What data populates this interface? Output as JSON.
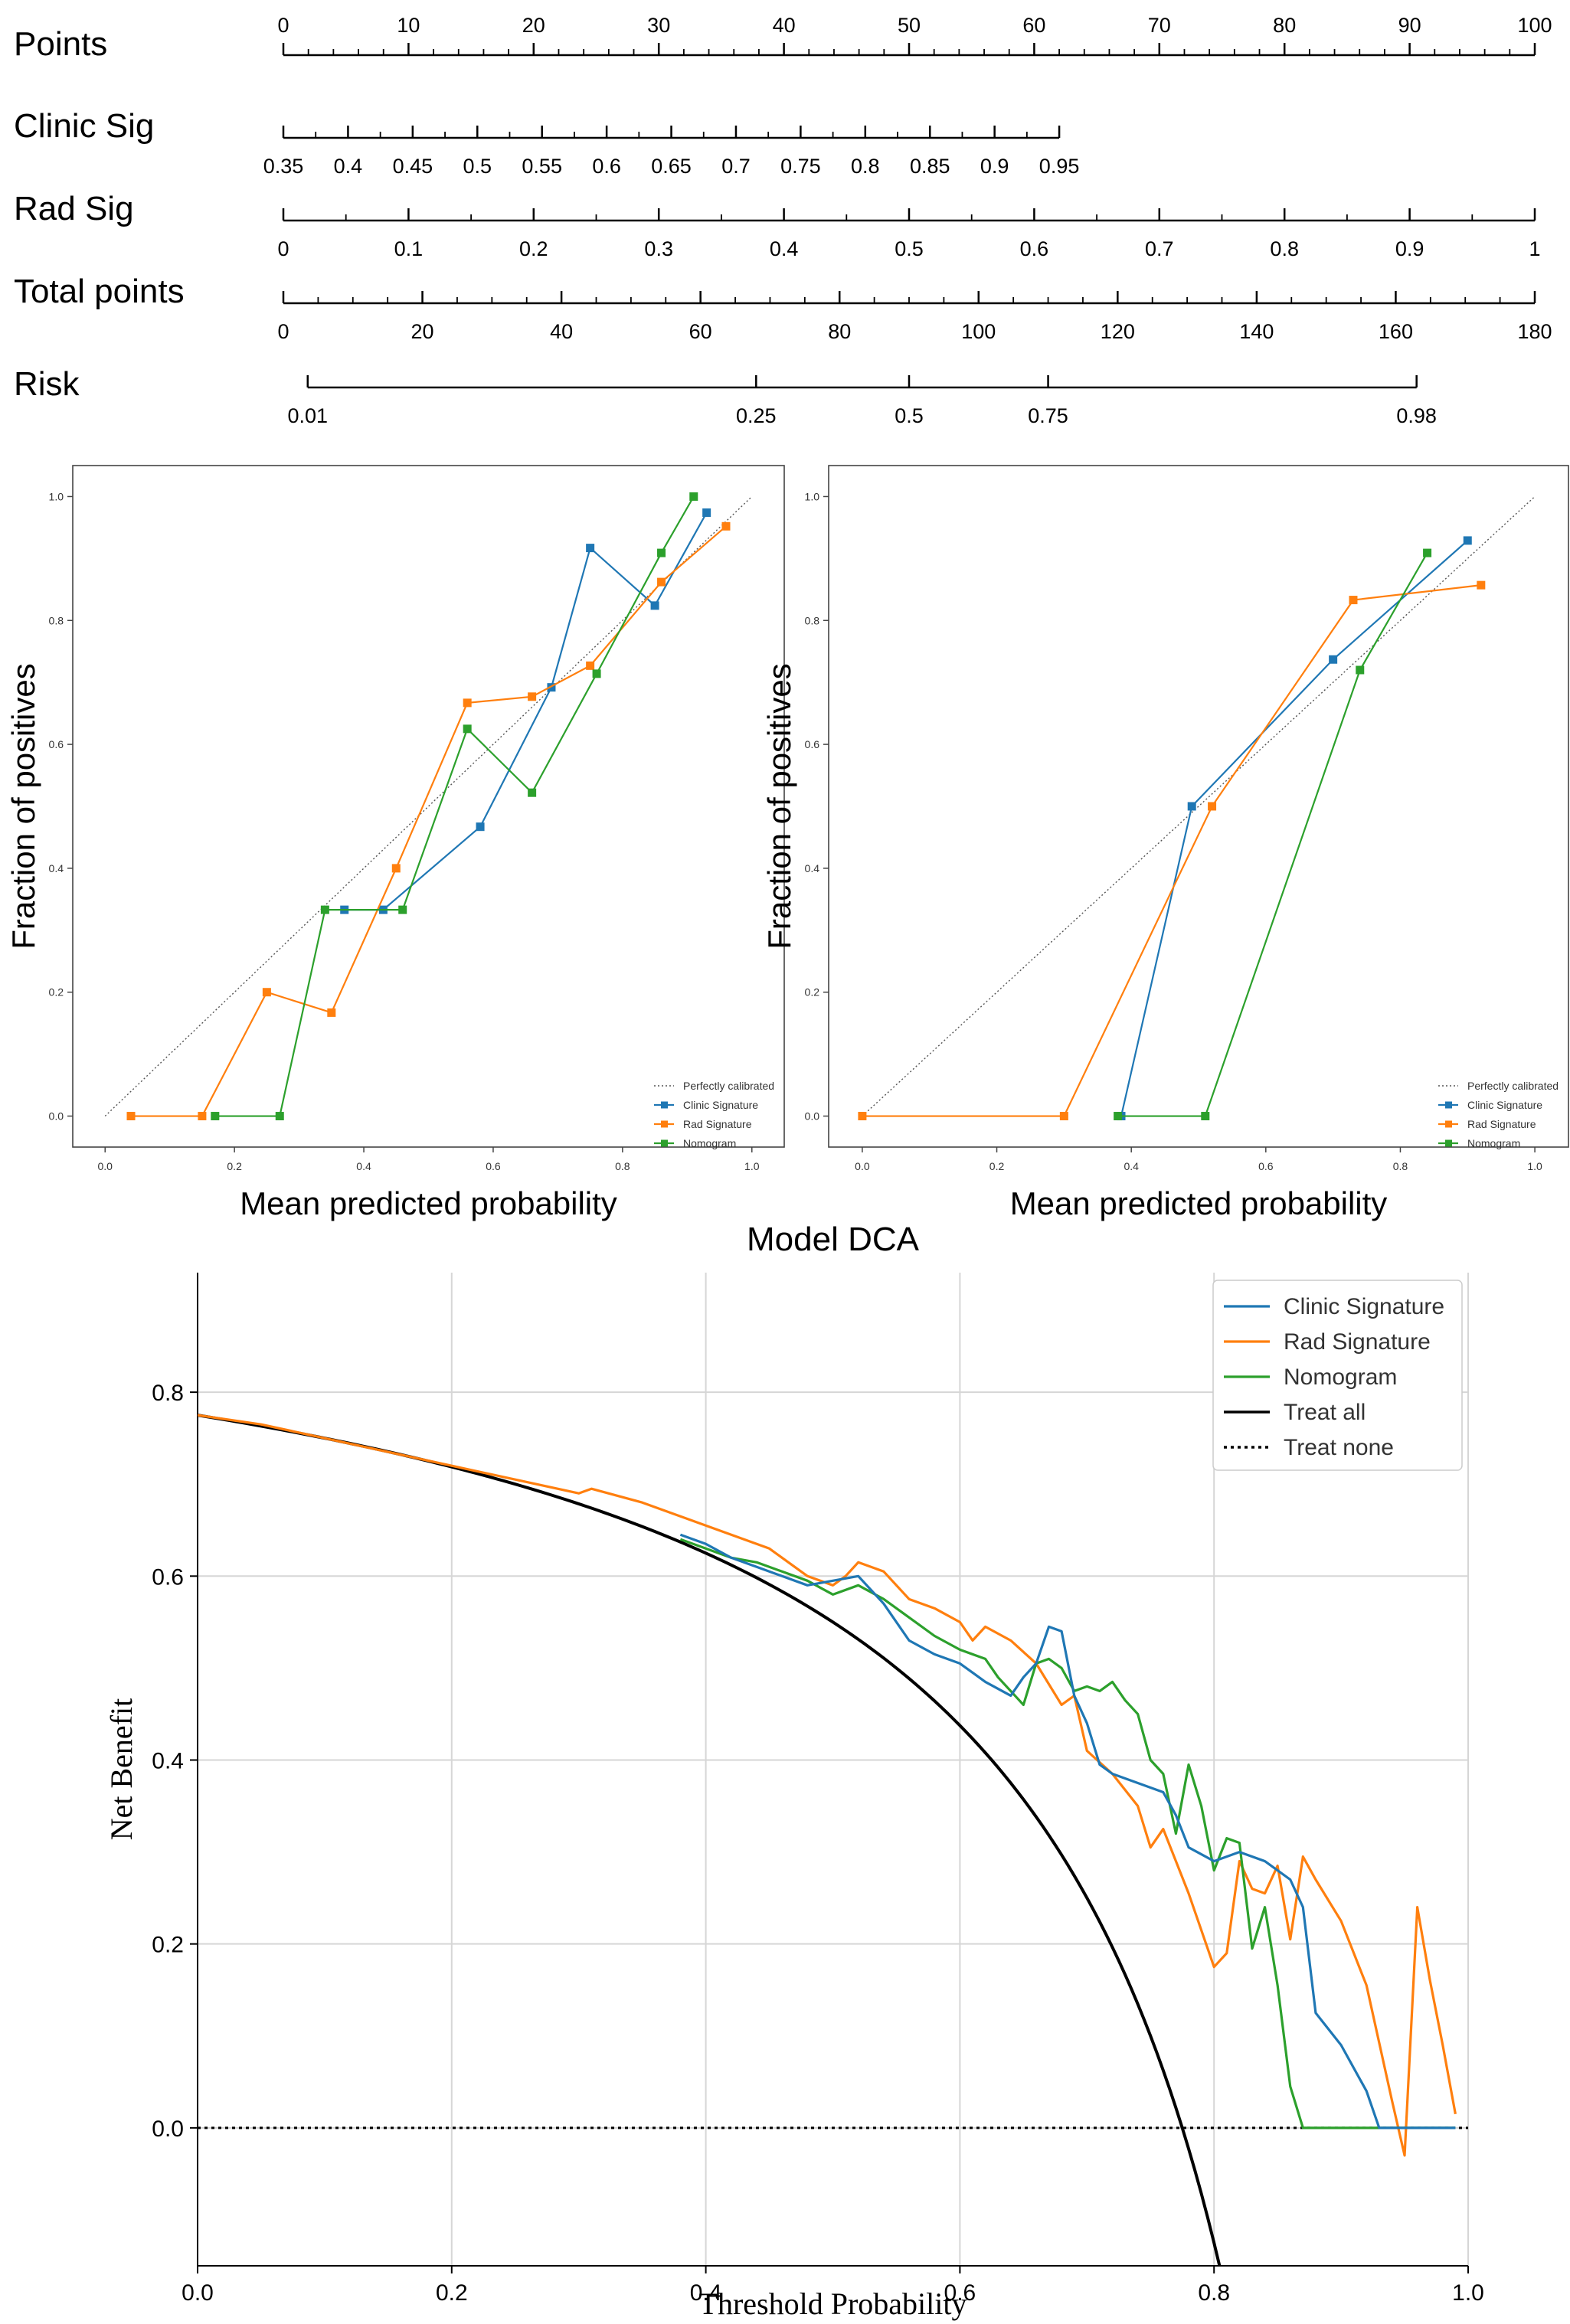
{
  "colors": {
    "clinic": "#1f77b4",
    "rad": "#ff7f0e",
    "nomogram": "#2ca02c",
    "treat_all": "#000000",
    "axis": "#000000",
    "grid": "#d6d6d6"
  },
  "chart_data": [
    {
      "type": "nomogram",
      "rows": [
        {
          "label": "Points",
          "ticks": [
            "0",
            "10",
            "20",
            "30",
            "40",
            "50",
            "60",
            "70",
            "80",
            "90",
            "100"
          ],
          "tick_values": [
            0,
            10,
            20,
            30,
            40,
            50,
            60,
            70,
            80,
            90,
            100
          ],
          "range": [
            0,
            100
          ],
          "axis_length_points": 100
        },
        {
          "label": "Clinic Sig",
          "ticks": [
            "0.35",
            "0.4",
            "0.45",
            "0.5",
            "0.55",
            "0.6",
            "0.65",
            "0.7",
            "0.75",
            "0.8",
            "0.85",
            "0.9",
            "0.95"
          ],
          "tick_values": [
            0.35,
            0.4,
            0.45,
            0.5,
            0.55,
            0.6,
            0.65,
            0.7,
            0.75,
            0.8,
            0.85,
            0.9,
            0.95
          ],
          "range": [
            0.35,
            0.95
          ],
          "points_range": [
            0,
            62
          ]
        },
        {
          "label": "Rad Sig",
          "ticks": [
            "0",
            "0.1",
            "0.2",
            "0.3",
            "0.4",
            "0.5",
            "0.6",
            "0.7",
            "0.8",
            "0.9",
            "1"
          ],
          "tick_values": [
            0,
            0.1,
            0.2,
            0.3,
            0.4,
            0.5,
            0.6,
            0.7,
            0.8,
            0.9,
            1
          ],
          "range": [
            0,
            1
          ],
          "points_range": [
            0,
            100
          ]
        },
        {
          "label": "Total points",
          "ticks": [
            "0",
            "20",
            "40",
            "60",
            "80",
            "100",
            "120",
            "140",
            "160",
            "180"
          ],
          "tick_values": [
            0,
            20,
            40,
            60,
            80,
            100,
            120,
            140,
            160,
            180
          ],
          "range": [
            0,
            180
          ]
        },
        {
          "label": "Risk",
          "ticks": [
            "0.01",
            "0.25",
            "0.5",
            "0.75",
            "0.98"
          ],
          "tick_values": [
            0.01,
            0.25,
            0.5,
            0.75,
            0.98
          ],
          "total_points_at_ticks": [
            3.5,
            68,
            90,
            110,
            163
          ],
          "range": [
            0.01,
            0.98
          ]
        }
      ]
    },
    {
      "type": "line",
      "title": "",
      "xlabel": "Mean predicted probability",
      "ylabel": "Fraction of positives",
      "xlim": [
        -0.05,
        1.05
      ],
      "ylim": [
        -0.05,
        1.05
      ],
      "xticks": [
        "0.0",
        "0.2",
        "0.4",
        "0.6",
        "0.8",
        "1.0"
      ],
      "yticks": [
        "0.0",
        "0.2",
        "0.4",
        "0.6",
        "0.8",
        "1.0"
      ],
      "legend_position": "bottom-right",
      "legend": [
        "Perfectly calibrated",
        "Clinic Signature",
        "Rad Signature",
        "Nomogram"
      ],
      "series": [
        {
          "name": "Perfectly calibrated",
          "style": "dotted",
          "x": [
            0,
            1
          ],
          "y": [
            0,
            1
          ]
        },
        {
          "name": "Clinic Signature",
          "x": [
            0.37,
            0.43,
            0.58,
            0.69,
            0.75,
            0.85,
            0.93
          ],
          "y": [
            0.333,
            0.333,
            0.467,
            0.692,
            0.917,
            0.824,
            0.974
          ]
        },
        {
          "name": "Rad Signature",
          "x": [
            0.04,
            0.15,
            0.25,
            0.35,
            0.45,
            0.56,
            0.66,
            0.75,
            0.86,
            0.96
          ],
          "y": [
            0.0,
            0.0,
            0.2,
            0.167,
            0.4,
            0.667,
            0.677,
            0.727,
            0.862,
            0.952
          ]
        },
        {
          "name": "Nomogram",
          "x": [
            0.17,
            0.27,
            0.34,
            0.46,
            0.56,
            0.66,
            0.76,
            0.86,
            0.91
          ],
          "y": [
            0.0,
            0.0,
            0.333,
            0.333,
            0.625,
            0.522,
            0.714,
            0.909,
            1.0
          ]
        }
      ]
    },
    {
      "type": "line",
      "title": "",
      "xlabel": "Mean predicted probability",
      "ylabel": "Fraction of positives",
      "xlim": [
        -0.05,
        1.05
      ],
      "ylim": [
        -0.05,
        1.05
      ],
      "xticks": [
        "0.0",
        "0.2",
        "0.4",
        "0.6",
        "0.8",
        "1.0"
      ],
      "yticks": [
        "0.0",
        "0.2",
        "0.4",
        "0.6",
        "0.8",
        "1.0"
      ],
      "legend_position": "bottom-right",
      "legend": [
        "Perfectly calibrated",
        "Clinic Signature",
        "Rad Signature",
        "Nomogram"
      ],
      "series": [
        {
          "name": "Perfectly calibrated",
          "style": "dotted",
          "x": [
            0,
            1
          ],
          "y": [
            0,
            1
          ]
        },
        {
          "name": "Clinic Signature",
          "x": [
            0.385,
            0.49,
            0.7,
            0.9
          ],
          "y": [
            0.0,
            0.5,
            0.737,
            0.929
          ]
        },
        {
          "name": "Rad Signature",
          "x": [
            0.0,
            0.3,
            0.52,
            0.73,
            0.92
          ],
          "y": [
            0.0,
            0.0,
            0.5,
            0.833,
            0.857
          ]
        },
        {
          "name": "Nomogram",
          "x": [
            0.38,
            0.51,
            0.74,
            0.84
          ],
          "y": [
            0.0,
            0.0,
            0.72,
            0.909
          ]
        }
      ]
    },
    {
      "type": "line",
      "title": "Model DCA",
      "xlabel": "Threshold Probability",
      "ylabel": "Net Benefit",
      "xlim": [
        0.0,
        1.0
      ],
      "ylim": [
        -0.15,
        0.93
      ],
      "xticks": [
        "0.0",
        "0.2",
        "0.4",
        "0.6",
        "0.8",
        "1.0"
      ],
      "yticks": [
        "0.0",
        "0.2",
        "0.4",
        "0.6",
        "0.8"
      ],
      "grid": true,
      "legend_position": "top-right",
      "legend": [
        "Clinic Signature",
        "Rad Signature",
        "Nomogram",
        "Treat all",
        "Treat none"
      ],
      "prevalence": 0.775,
      "series": [
        {
          "name": "Clinic Signature",
          "x": [
            0.38,
            0.4,
            0.42,
            0.44,
            0.46,
            0.48,
            0.5,
            0.52,
            0.54,
            0.56,
            0.58,
            0.6,
            0.62,
            0.64,
            0.65,
            0.66,
            0.67,
            0.68,
            0.69,
            0.7,
            0.71,
            0.72,
            0.74,
            0.76,
            0.77,
            0.78,
            0.8,
            0.82,
            0.84,
            0.86,
            0.87,
            0.88,
            0.9,
            0.92,
            0.93,
            0.95,
            0.97,
            0.99
          ],
          "y": [
            0.645,
            0.635,
            0.62,
            0.61,
            0.6,
            0.59,
            0.595,
            0.6,
            0.57,
            0.53,
            0.515,
            0.505,
            0.485,
            0.47,
            0.49,
            0.505,
            0.545,
            0.54,
            0.47,
            0.44,
            0.395,
            0.385,
            0.375,
            0.365,
            0.34,
            0.305,
            0.29,
            0.3,
            0.29,
            0.27,
            0.24,
            0.125,
            0.09,
            0.04,
            0.0,
            0.0,
            0.0,
            0.0
          ]
        },
        {
          "name": "Rad Signature",
          "x": [
            0.0,
            0.05,
            0.1,
            0.15,
            0.2,
            0.25,
            0.3,
            0.31,
            0.35,
            0.4,
            0.45,
            0.46,
            0.48,
            0.5,
            0.51,
            0.52,
            0.54,
            0.56,
            0.58,
            0.6,
            0.61,
            0.62,
            0.64,
            0.66,
            0.68,
            0.69,
            0.7,
            0.72,
            0.74,
            0.75,
            0.76,
            0.78,
            0.8,
            0.81,
            0.82,
            0.83,
            0.84,
            0.85,
            0.86,
            0.87,
            0.88,
            0.9,
            0.92,
            0.94,
            0.95,
            0.96,
            0.97,
            0.98,
            0.99
          ],
          "y": [
            0.775,
            0.765,
            0.75,
            0.735,
            0.72,
            0.705,
            0.69,
            0.695,
            0.68,
            0.655,
            0.63,
            0.62,
            0.6,
            0.59,
            0.6,
            0.615,
            0.605,
            0.575,
            0.565,
            0.55,
            0.53,
            0.545,
            0.53,
            0.505,
            0.46,
            0.47,
            0.41,
            0.385,
            0.35,
            0.305,
            0.325,
            0.255,
            0.175,
            0.19,
            0.29,
            0.26,
            0.255,
            0.285,
            0.205,
            0.295,
            0.27,
            0.225,
            0.155,
            0.03,
            -0.03,
            0.24,
            0.16,
            0.09,
            0.015
          ]
        },
        {
          "name": "Nomogram",
          "x": [
            0.38,
            0.4,
            0.42,
            0.44,
            0.46,
            0.48,
            0.5,
            0.52,
            0.54,
            0.56,
            0.58,
            0.6,
            0.62,
            0.63,
            0.65,
            0.66,
            0.67,
            0.68,
            0.69,
            0.7,
            0.71,
            0.72,
            0.73,
            0.74,
            0.75,
            0.76,
            0.77,
            0.78,
            0.79,
            0.8,
            0.81,
            0.82,
            0.83,
            0.84,
            0.85,
            0.86,
            0.87,
            0.9,
            0.95,
            0.99
          ],
          "y": [
            0.64,
            0.63,
            0.62,
            0.615,
            0.605,
            0.595,
            0.58,
            0.59,
            0.575,
            0.555,
            0.535,
            0.52,
            0.51,
            0.49,
            0.46,
            0.505,
            0.51,
            0.5,
            0.475,
            0.48,
            0.475,
            0.485,
            0.465,
            0.45,
            0.4,
            0.385,
            0.32,
            0.395,
            0.35,
            0.28,
            0.315,
            0.31,
            0.195,
            0.24,
            0.155,
            0.045,
            0.0,
            0.0,
            0.0,
            0.0
          ]
        },
        {
          "name": "Treat all",
          "formula": "(0.775 - (1-0.775)*x/(1-x))",
          "x_range": [
            0.0,
            0.81
          ]
        },
        {
          "name": "Treat none",
          "style": "dotted",
          "x": [
            0.0,
            1.0
          ],
          "y": [
            0.0,
            0.0
          ]
        }
      ]
    }
  ]
}
